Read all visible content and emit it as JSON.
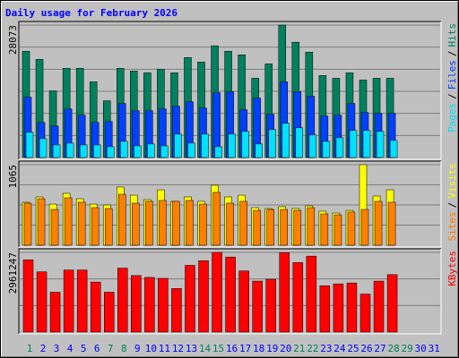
{
  "chart_data": {
    "type": "bar",
    "title": "Daily usage for February 2026",
    "categories": [
      "1",
      "2",
      "3",
      "4",
      "5",
      "6",
      "7",
      "8",
      "9",
      "10",
      "11",
      "12",
      "13",
      "14",
      "15",
      "16",
      "17",
      "18",
      "19",
      "20",
      "21",
      "22",
      "23",
      "24",
      "25",
      "26",
      "27",
      "28",
      "29",
      "30",
      "31"
    ],
    "category_colors": [
      "#00805C",
      "#0000FF",
      "#0000FF",
      "#0000FF",
      "#0000FF",
      "#0000FF",
      "#00805C",
      "#00805C",
      "#0000FF",
      "#0000FF",
      "#0000FF",
      "#0000FF",
      "#0000FF",
      "#00805C",
      "#00805C",
      "#0000FF",
      "#0000FF",
      "#0000FF",
      "#0000FF",
      "#0000FF",
      "#00805C",
      "#00805C",
      "#0000FF",
      "#0000FF",
      "#0000FF",
      "#0000FF",
      "#0000FF",
      "#00805C",
      "#00805C",
      "#0000FF",
      "#0000FF"
    ],
    "legend_separator": "/",
    "panels": [
      {
        "ylim": [
          0,
          28073
        ],
        "grid_divisions": 6,
        "series": [
          {
            "name": "Hits",
            "color": "#00805C",
            "values": [
              22530,
              20810,
              14130,
              18910,
              18910,
              16040,
              12030,
              18910,
              18330,
              17950,
              18710,
              17950,
              21200,
              20240,
              23680,
              22530,
              21770,
              16800,
              19860,
              28073,
              24440,
              22340,
              17380,
              16800,
              17950,
              16420,
              16800,
              16800,
              null,
              null,
              null
            ]
          },
          {
            "name": "Files",
            "color": "#0040FF",
            "values": [
              12800,
              7450,
              6690,
              10310,
              8980,
              7450,
              7640,
              11460,
              9930,
              9930,
              10310,
              10890,
              11840,
              10500,
              13750,
              13940,
              10120,
              12600,
              9170,
              16040,
              13940,
              12990,
              8790,
              8980,
              11460,
              9550,
              9360,
              9360,
              null,
              null,
              null
            ]
          },
          {
            "name": "Pages",
            "color": "#00E0FF",
            "values": [
              5350,
              4010,
              2670,
              3060,
              2670,
              2670,
              2290,
              3440,
              2480,
              2870,
              2480,
              4970,
              3060,
              4970,
              2290,
              4970,
              5540,
              2870,
              5920,
              7260,
              6300,
              4780,
              3440,
              4200,
              5730,
              5730,
              5540,
              3630,
              null,
              null,
              null
            ]
          }
        ]
      },
      {
        "ylim": [
          0,
          1065
        ],
        "grid_divisions": 4,
        "series": [
          {
            "name": "Visits",
            "color": "#FFFF00",
            "values": [
              568,
              639,
              544,
              686,
              615,
              544,
              532,
              769,
              662,
              603,
              733,
              580,
              639,
              580,
              793,
              639,
              662,
              497,
              485,
              509,
              485,
              521,
              450,
              426,
              461,
              1065,
              651,
              733,
              null,
              null,
              null
            ]
          },
          {
            "name": "Sites",
            "color": "#FF8000",
            "values": [
              556,
              615,
              473,
              627,
              568,
              497,
              485,
              674,
              556,
              580,
              592,
              580,
              592,
              544,
              698,
              556,
              580,
              461,
              473,
              473,
              461,
              497,
              414,
              402,
              438,
              473,
              580,
              568,
              null,
              null,
              null
            ]
          }
        ]
      },
      {
        "ylim": [
          0,
          2961247
        ],
        "grid_divisions": 3,
        "series": [
          {
            "name": "KBytes",
            "color": "#FF0000",
            "values": [
              2685800,
              2238100,
              1480600,
              2307000,
              2307000,
              1859400,
              1480600,
              2375900,
              2100400,
              2031500,
              1997100,
              1618400,
              2479200,
              2651300,
              2961247,
              2789100,
              2272600,
              1893800,
              1962700,
              2950000,
              2582500,
              2823500,
              1721700,
              1790500,
              1825000,
              1411800,
              1893800,
              2134800,
              null,
              null,
              null
            ]
          }
        ]
      }
    ]
  }
}
